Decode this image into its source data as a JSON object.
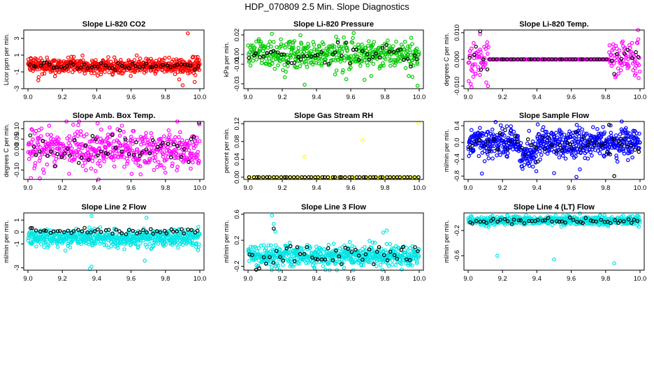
{
  "page_title": "HDP_070809  2.5 Min. Slope Diagnostics",
  "colors": {
    "black": "#000000",
    "red": "#ff0000",
    "green": "#00c800",
    "magenta": "#ff00ff",
    "yellow": "#ffff00",
    "blue": "#0000ff",
    "cyan": "#00e5e5"
  },
  "chart_data": [
    {
      "type": "scatter",
      "title": "Slope Li-820 CO2",
      "xlabel": "",
      "ylabel": "Licor ppm per min.",
      "xlim": [
        9.0,
        10.0
      ],
      "ylim": [
        -3,
        4
      ],
      "xticks": [
        "9.0",
        "9.2",
        "9.4",
        "9.6",
        "9.8",
        "10.0"
      ],
      "yticks": [
        {
          "v": -3,
          "t": "-3"
        },
        {
          "v": -1,
          "t": "-1"
        },
        {
          "v": 1,
          "t": "1"
        },
        {
          "v": 3,
          "t": "3"
        }
      ],
      "series": [
        {
          "name": "all",
          "color": "red",
          "n": 600,
          "center": -0.3,
          "spread": 0.45,
          "x": [
            9.93,
            9.9,
            9.88,
            9.06,
            9.97
          ],
          "y": [
            3.6,
            -2.6,
            -1.9,
            -2.0,
            -2.2
          ]
        },
        {
          "name": "15min",
          "color": "black",
          "n": 50,
          "center": -0.3,
          "spread": 0.2,
          "x": [],
          "y": []
        }
      ]
    },
    {
      "type": "scatter",
      "title": "Slope Li-820 Pressure",
      "xlabel": "",
      "ylabel": "kPa per min.",
      "xlim": [
        9.0,
        10.0
      ],
      "ylim": [
        -0.035,
        0.025
      ],
      "xticks": [
        "9.0",
        "9.2",
        "9.4",
        "9.6",
        "9.8",
        "10.0"
      ],
      "yticks": [
        {
          "v": -0.03,
          "t": "-0.03"
        },
        {
          "v": -0.01,
          "t": "-0.01"
        },
        {
          "v": 0.0,
          "t": "0.00"
        },
        {
          "v": 0.02,
          "t": "0.02"
        }
      ],
      "series": [
        {
          "name": "all",
          "color": "green",
          "n": 450,
          "center": 0.0,
          "spread": 0.0075,
          "x": [
            9.33,
            9.68,
            9.72,
            9.96,
            9.99
          ],
          "y": [
            -0.031,
            -0.026,
            -0.022,
            -0.023,
            -0.032
          ]
        },
        {
          "name": "15min",
          "color": "black",
          "n": 50,
          "center": 0.0,
          "spread": 0.005,
          "x": [],
          "y": []
        }
      ]
    },
    {
      "type": "scatter",
      "title": "Slope Li-820 Temp.",
      "xlabel": "",
      "ylabel": "degrees C per min.",
      "xlim": [
        9.0,
        10.0
      ],
      "ylim": [
        -0.011,
        0.011
      ],
      "xticks": [
        "9.0",
        "9.2",
        "9.4",
        "9.6",
        "9.8",
        "10.0"
      ],
      "yticks": [
        {
          "v": -0.01,
          "t": "-0.010"
        },
        {
          "v": 0.0,
          "t": "0.000"
        },
        {
          "v": 0.01,
          "t": "0.010"
        }
      ],
      "series": [
        {
          "name": "all",
          "color": "magenta",
          "n": 420,
          "center": 0.0,
          "spread": 0.0,
          "x": [
            9.07,
            9.02,
            9.99,
            9.97
          ],
          "y": [
            0.0095,
            -0.0105,
            0.0075,
            -0.006
          ],
          "edgeSpread": 0.004,
          "edgeLeft": 9.12,
          "edgeRight": 9.82
        },
        {
          "name": "15min",
          "color": "black",
          "n": 50,
          "center": 0.0,
          "spread": 0.0,
          "x": [
            9.07
          ],
          "y": [
            0.0105
          ],
          "edgeSpread": 0.003,
          "edgeLeft": 9.12,
          "edgeRight": 9.82
        }
      ]
    },
    {
      "type": "scatter",
      "title": "Slope Amb. Box Temp.",
      "xlabel": "",
      "ylabel": "degrees C per min.",
      "xlim": [
        9.0,
        10.0
      ],
      "ylim": [
        -0.145,
        0.135
      ],
      "xticks": [
        "9.0",
        "9.2",
        "9.4",
        "9.6",
        "9.8",
        "10.0"
      ],
      "yticks": [
        {
          "v": -0.1,
          "t": "-0.10"
        },
        {
          "v": 0.0,
          "t": "0.00"
        },
        {
          "v": 0.05,
          "t": "0.05"
        },
        {
          "v": 0.1,
          "t": "0.10"
        }
      ],
      "series": [
        {
          "name": "all",
          "color": "magenta",
          "n": 500,
          "center": 0.0,
          "spread": 0.05,
          "x": [],
          "y": []
        },
        {
          "name": "15min",
          "color": "black",
          "n": 50,
          "center": 0.0,
          "spread": 0.04,
          "x": [],
          "y": []
        }
      ]
    },
    {
      "type": "scatter",
      "title": "Slope Gas Stream RH",
      "xlabel": "",
      "ylabel": "percent per min.",
      "xlim": [
        9.0,
        10.0
      ],
      "ylim": [
        -0.005,
        0.125
      ],
      "xticks": [
        "9.0",
        "9.2",
        "9.4",
        "9.6",
        "9.8",
        "10.0"
      ],
      "yticks": [
        {
          "v": 0.0,
          "t": "0.00"
        },
        {
          "v": 0.04,
          "t": "0.04"
        },
        {
          "v": 0.08,
          "t": "0.08"
        },
        {
          "v": 0.12,
          "t": "0.12"
        }
      ],
      "series": [
        {
          "name": "all",
          "color": "yellow",
          "n": 70,
          "center": 0.0,
          "spread": 0.0,
          "x": [
            9.33,
            9.67,
            9.995,
            9.01
          ],
          "y": [
            0.046,
            0.083,
            0.122,
            -0.002
          ],
          "flat": true
        },
        {
          "name": "15min",
          "color": "black",
          "n": 50,
          "center": 0.0,
          "spread": 0.0,
          "x": [],
          "y": [],
          "flat": true
        }
      ]
    },
    {
      "type": "scatter",
      "title": "Slope Sample Flow",
      "xlabel": "",
      "ylabel": "ml/min per min.",
      "xlim": [
        9.0,
        10.0
      ],
      "ylim": [
        -0.88,
        0.5
      ],
      "xticks": [
        "9.0",
        "9.2",
        "9.4",
        "9.6",
        "9.8",
        "10.0"
      ],
      "yticks": [
        {
          "v": -0.8,
          "t": "-0.8"
        },
        {
          "v": -0.4,
          "t": "-0.4"
        },
        {
          "v": 0.0,
          "t": "0.0"
        },
        {
          "v": 0.4,
          "t": "0.4"
        }
      ],
      "series": [
        {
          "name": "all",
          "color": "blue",
          "n": 650,
          "center": 0.0,
          "spread": 0.17,
          "x": [
            9.08,
            9.5,
            9.63,
            9.65,
            9.93
          ],
          "y": [
            -0.74,
            -0.73,
            -0.82,
            -0.64,
            -0.42
          ],
          "dip": {
            "x": 9.35,
            "y": -0.5
          }
        },
        {
          "name": "15min",
          "color": "black",
          "n": 50,
          "center": -0.05,
          "spread": 0.13,
          "x": [
            9.85,
            9.82
          ],
          "y": [
            -0.8,
            0.42
          ],
          "dip": null
        }
      ]
    },
    {
      "type": "scatter",
      "title": "Slope Line 2 Flow",
      "xlabel": "",
      "ylabel": "ml/min per min.",
      "xlim": [
        9.0,
        10.0
      ],
      "ylim": [
        -3.2,
        1.6
      ],
      "xticks": [
        "9.0",
        "9.2",
        "9.4",
        "9.6",
        "9.8",
        "10.0"
      ],
      "yticks": [
        {
          "v": -3,
          "t": "-3"
        },
        {
          "v": -1,
          "t": "-1"
        },
        {
          "v": 0,
          "t": "0"
        },
        {
          "v": 1,
          "t": "1"
        }
      ],
      "series": [
        {
          "name": "all",
          "color": "cyan",
          "n": 600,
          "center": -0.5,
          "spread": 0.35,
          "x": [
            9.37,
            9.37,
            9.68,
            9.69,
            9.36
          ],
          "y": [
            1.35,
            -2.9,
            -2.4,
            1.2,
            -3.1
          ]
        },
        {
          "name": "15min",
          "color": "black",
          "n": 50,
          "center": 0.1,
          "spread": 0.15,
          "x": [],
          "y": []
        }
      ]
    },
    {
      "type": "scatter",
      "title": "Slope Line 3 Flow",
      "xlabel": "",
      "ylabel": "ml/min per min.",
      "xlim": [
        9.0,
        10.0
      ],
      "ylim": [
        -0.26,
        0.62
      ],
      "xticks": [
        "9.0",
        "9.2",
        "9.4",
        "9.6",
        "9.8",
        "10.0"
      ],
      "yticks": [
        {
          "v": -0.2,
          "t": "-0.2"
        },
        {
          "v": 0.2,
          "t": "0.2"
        },
        {
          "v": 0.6,
          "t": "0.6"
        }
      ],
      "series": [
        {
          "name": "all",
          "color": "cyan",
          "n": 600,
          "center": -0.04,
          "spread": 0.08,
          "x": [
            9.14,
            9.15,
            9.16,
            9.79,
            9.81
          ],
          "y": [
            0.58,
            0.45,
            0.33,
            0.32,
            0.35
          ]
        },
        {
          "name": "15min",
          "color": "black",
          "n": 50,
          "center": -0.02,
          "spread": 0.08,
          "x": [
            9.15
          ],
          "y": [
            0.38
          ]
        }
      ]
    },
    {
      "type": "scatter",
      "title": "Slope Line 4 (LT) Flow",
      "xlabel": "",
      "ylabel": "ml/min per min.",
      "xlim": [
        9.0,
        10.0
      ],
      "ylim": [
        -0.83,
        0.08
      ],
      "xticks": [
        "9.0",
        "9.2",
        "9.4",
        "9.6",
        "9.8",
        "10.0"
      ],
      "yticks": [
        {
          "v": -0.6,
          "t": "-0.6"
        },
        {
          "v": -0.2,
          "t": "-0.2"
        }
      ],
      "series": [
        {
          "name": "all",
          "color": "cyan",
          "n": 600,
          "center": -0.04,
          "spread": 0.035,
          "x": [
            9.17,
            9.5,
            9.85
          ],
          "y": [
            -0.6,
            -0.66,
            -0.72
          ]
        },
        {
          "name": "15min",
          "color": "black",
          "n": 50,
          "center": -0.05,
          "spread": 0.025,
          "x": [],
          "y": []
        }
      ]
    }
  ]
}
